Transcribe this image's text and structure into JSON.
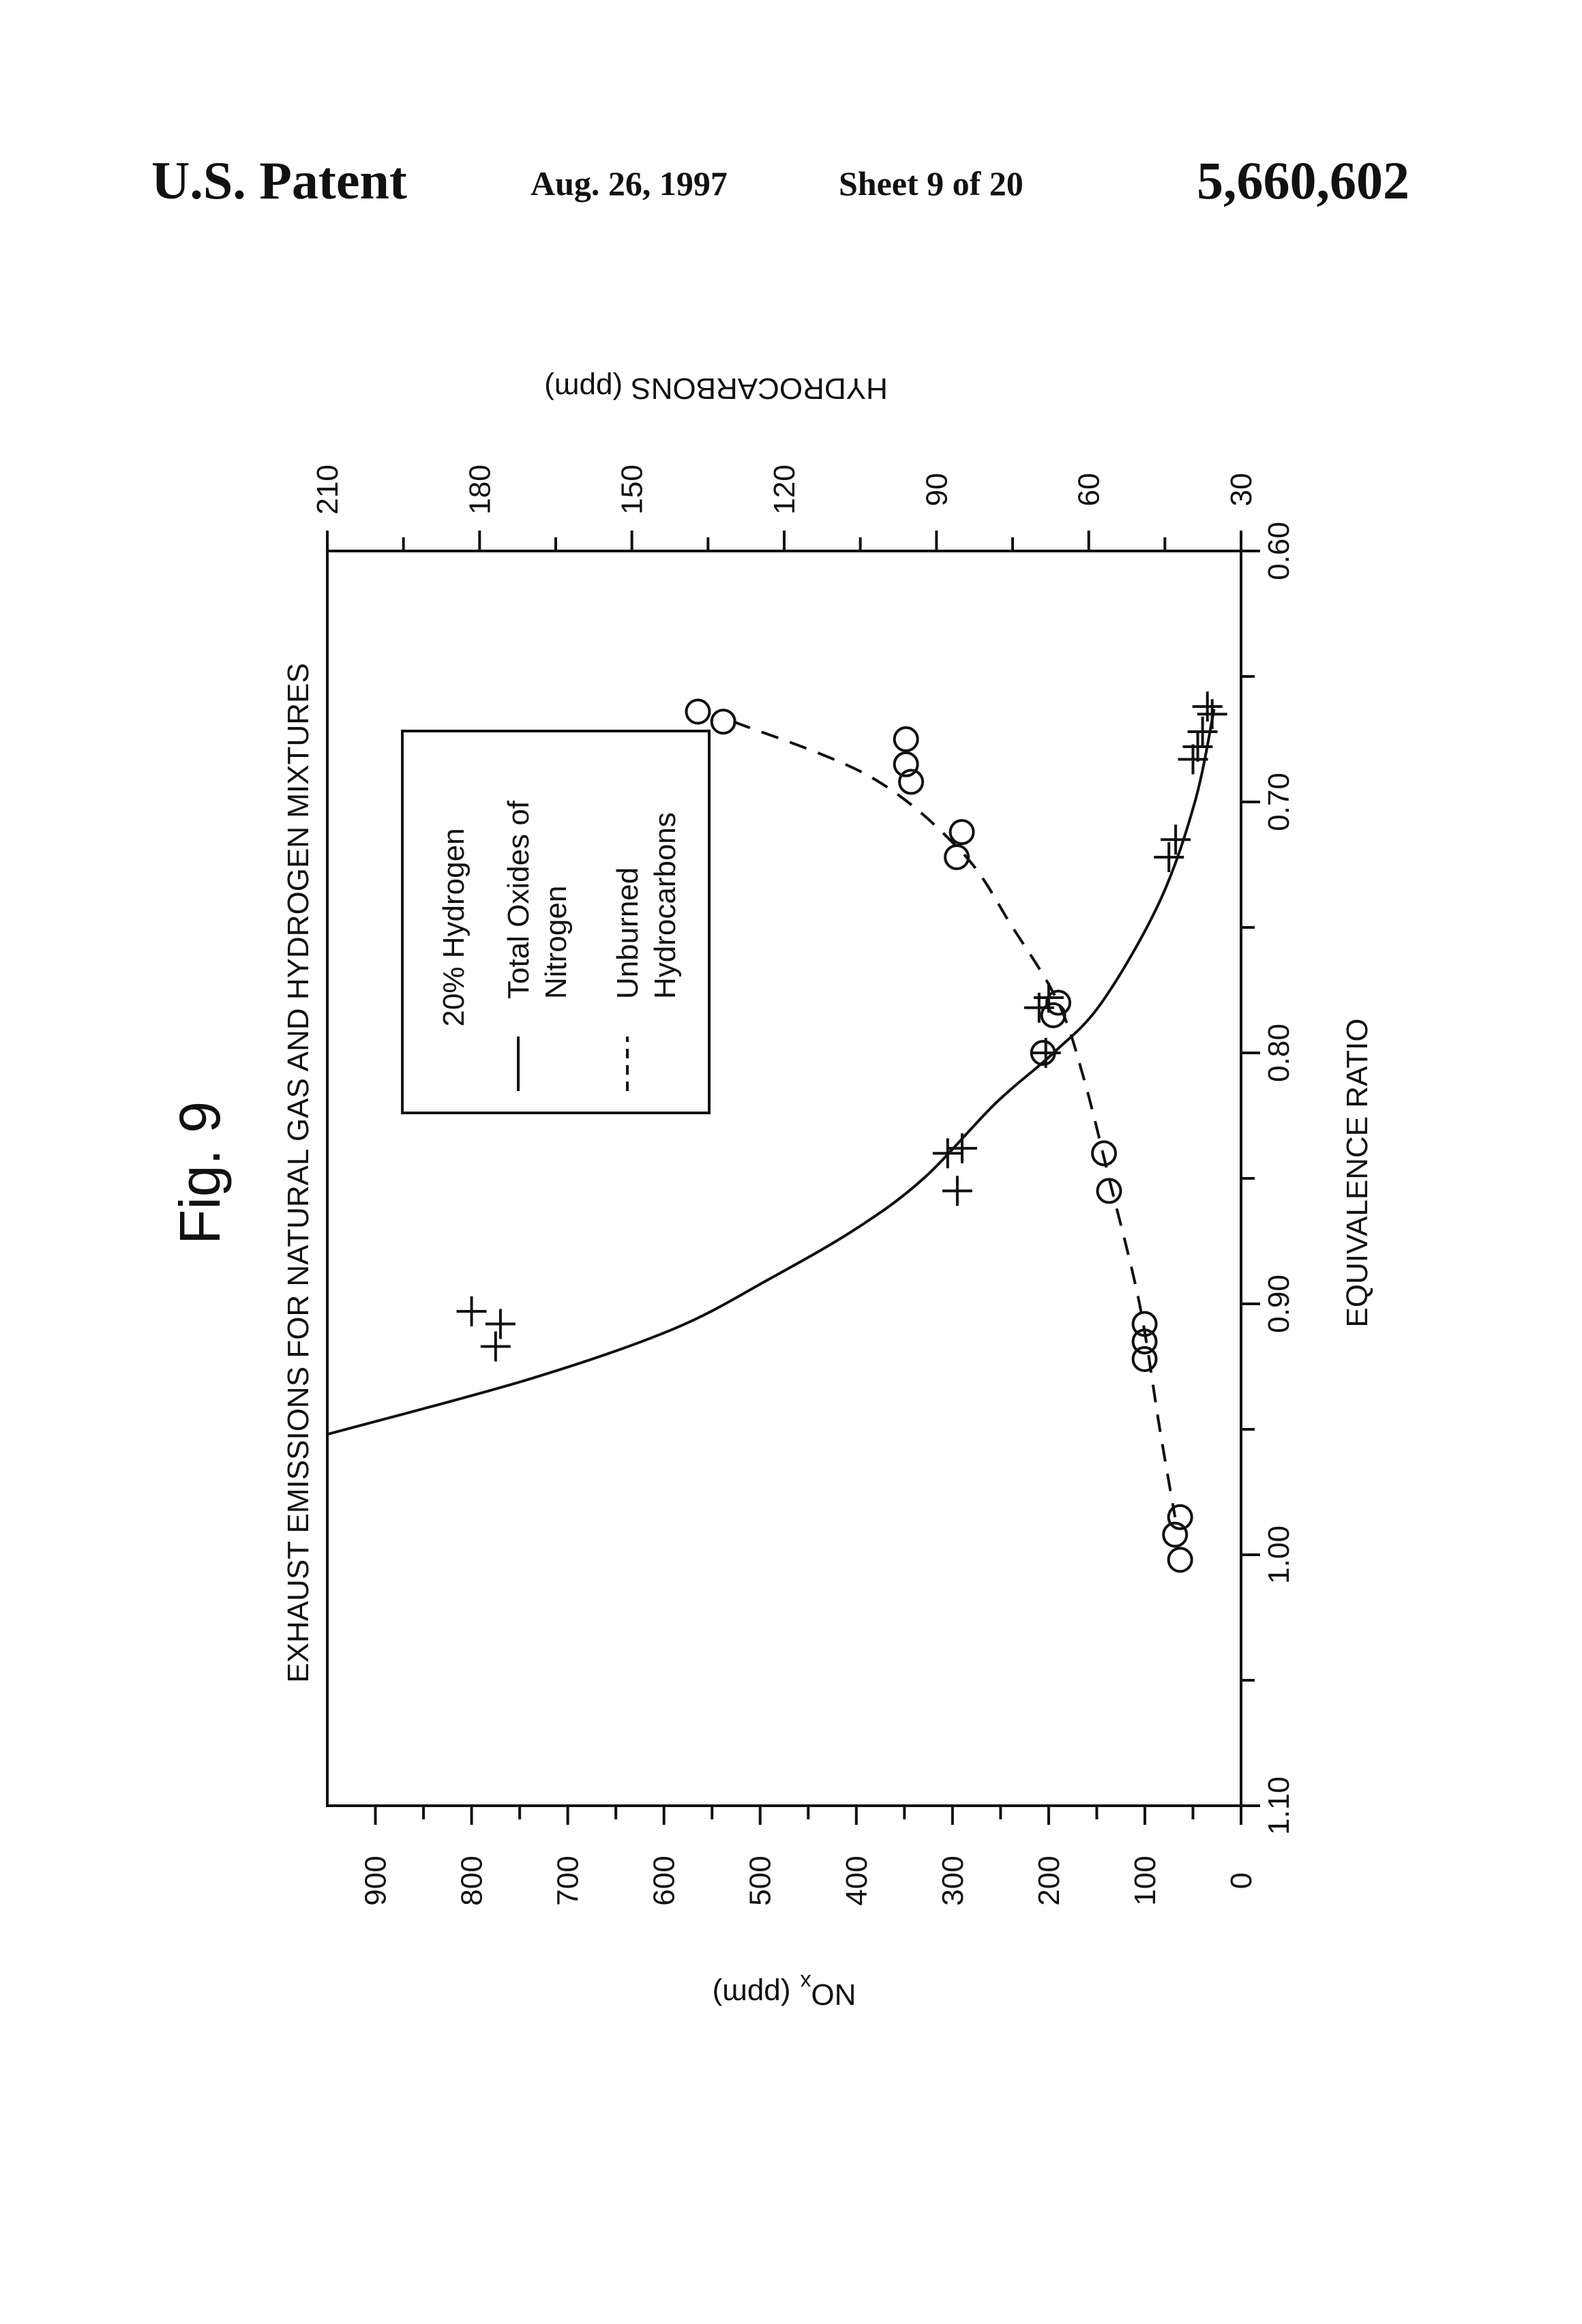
{
  "header": {
    "patent_label": "U.S. Patent",
    "date": "Aug. 26, 1997",
    "sheet": "Sheet 9 of 20",
    "patent_number": "5,660,602"
  },
  "figure": {
    "fig_label": "Fig. 9",
    "title": "EXHAUST EMISSIONS FOR NATURAL GAS AND HYDROGEN MIXTURES"
  },
  "legend": {
    "heading": "20% Hydrogen",
    "items": [
      {
        "line1": "Total Oxides of",
        "line2": "Nitrogen",
        "style": "solid"
      },
      {
        "line1": "Unburned",
        "line2": "Hydrocarbons",
        "style": "dashed"
      }
    ]
  },
  "chart_data": {
    "type": "scatter",
    "rotation": "rotated 90 degrees counter-clockwise",
    "title": "EXHAUST EMISSIONS FOR NATURAL GAS AND HYDROGEN MIXTURES",
    "xlabel": "EQUIVALENCE RATIO",
    "xlim": [
      0.6,
      1.1
    ],
    "x_ticks": [
      0.6,
      0.7,
      0.8,
      0.9,
      1.0,
      1.1
    ],
    "x_tick_labels": [
      "0.60",
      "0.70",
      "0.80",
      "0.90",
      "1.00",
      "1.10"
    ],
    "ylabel_left": "NO",
    "ylabel_left_sub": "x",
    "ylabel_left_unit": "(ppm)",
    "ylim_left": [
      0,
      950
    ],
    "y_left_ticks": [
      0,
      100,
      200,
      300,
      400,
      500,
      600,
      700,
      800,
      900
    ],
    "y_left_tick_labels": [
      "0",
      "100",
      "200",
      "300",
      "400",
      "500",
      "600",
      "700",
      "800",
      "900"
    ],
    "ylabel_right": "HYDROCARBONS (ppm)",
    "ylim_right": [
      30,
      210
    ],
    "y_right_ticks": [
      30,
      60,
      90,
      120,
      150,
      180,
      210
    ],
    "y_right_tick_labels": [
      "30",
      "60",
      "90",
      "120",
      "150",
      "180",
      "210"
    ],
    "grid": false,
    "legend_position": "center (upper area of rotated plot)",
    "series": [
      {
        "name": "Total Oxides of Nitrogen",
        "marker": "plus",
        "axis": "left",
        "line_style": "solid",
        "points": [
          {
            "x": 0.662,
            "y": 35
          },
          {
            "x": 0.665,
            "y": 30
          },
          {
            "x": 0.672,
            "y": 40
          },
          {
            "x": 0.678,
            "y": 45
          },
          {
            "x": 0.683,
            "y": 50
          },
          {
            "x": 0.715,
            "y": 68
          },
          {
            "x": 0.722,
            "y": 75
          },
          {
            "x": 0.778,
            "y": 200
          },
          {
            "x": 0.782,
            "y": 210
          },
          {
            "x": 0.8,
            "y": 203
          },
          {
            "x": 0.838,
            "y": 290
          },
          {
            "x": 0.84,
            "y": 305
          },
          {
            "x": 0.855,
            "y": 295
          },
          {
            "x": 0.903,
            "y": 800
          },
          {
            "x": 0.908,
            "y": 770
          },
          {
            "x": 0.917,
            "y": 775
          }
        ],
        "fit_curve": [
          {
            "x": 0.663,
            "y": 28
          },
          {
            "x": 0.7,
            "y": 48
          },
          {
            "x": 0.74,
            "y": 85
          },
          {
            "x": 0.78,
            "y": 145
          },
          {
            "x": 0.8,
            "y": 195
          },
          {
            "x": 0.82,
            "y": 255
          },
          {
            "x": 0.85,
            "y": 330
          },
          {
            "x": 0.87,
            "y": 400
          },
          {
            "x": 0.89,
            "y": 490
          },
          {
            "x": 0.91,
            "y": 590
          },
          {
            "x": 0.93,
            "y": 740
          },
          {
            "x": 0.952,
            "y": 950
          }
        ]
      },
      {
        "name": "Unburned Hydrocarbons",
        "marker": "circle",
        "axis": "right",
        "line_style": "dashed",
        "points": [
          {
            "x": 0.664,
            "y": 137
          },
          {
            "x": 0.668,
            "y": 132
          },
          {
            "x": 0.675,
            "y": 96
          },
          {
            "x": 0.685,
            "y": 96
          },
          {
            "x": 0.692,
            "y": 95
          },
          {
            "x": 0.712,
            "y": 85
          },
          {
            "x": 0.722,
            "y": 86
          },
          {
            "x": 0.78,
            "y": 66
          },
          {
            "x": 0.785,
            "y": 67
          },
          {
            "x": 0.8,
            "y": 69
          },
          {
            "x": 0.84,
            "y": 57
          },
          {
            "x": 0.855,
            "y": 56
          },
          {
            "x": 0.908,
            "y": 49
          },
          {
            "x": 0.915,
            "y": 49
          },
          {
            "x": 0.922,
            "y": 49
          },
          {
            "x": 0.985,
            "y": 42
          },
          {
            "x": 0.992,
            "y": 43
          },
          {
            "x": 1.002,
            "y": 42
          }
        ],
        "fit_curve": [
          {
            "x": 0.668,
            "y": 130
          },
          {
            "x": 0.69,
            "y": 103
          },
          {
            "x": 0.72,
            "y": 85
          },
          {
            "x": 0.75,
            "y": 75
          },
          {
            "x": 0.78,
            "y": 66
          },
          {
            "x": 0.81,
            "y": 61
          },
          {
            "x": 0.85,
            "y": 56
          },
          {
            "x": 0.9,
            "y": 50
          },
          {
            "x": 0.95,
            "y": 46
          },
          {
            "x": 0.985,
            "y": 43
          }
        ]
      }
    ]
  }
}
